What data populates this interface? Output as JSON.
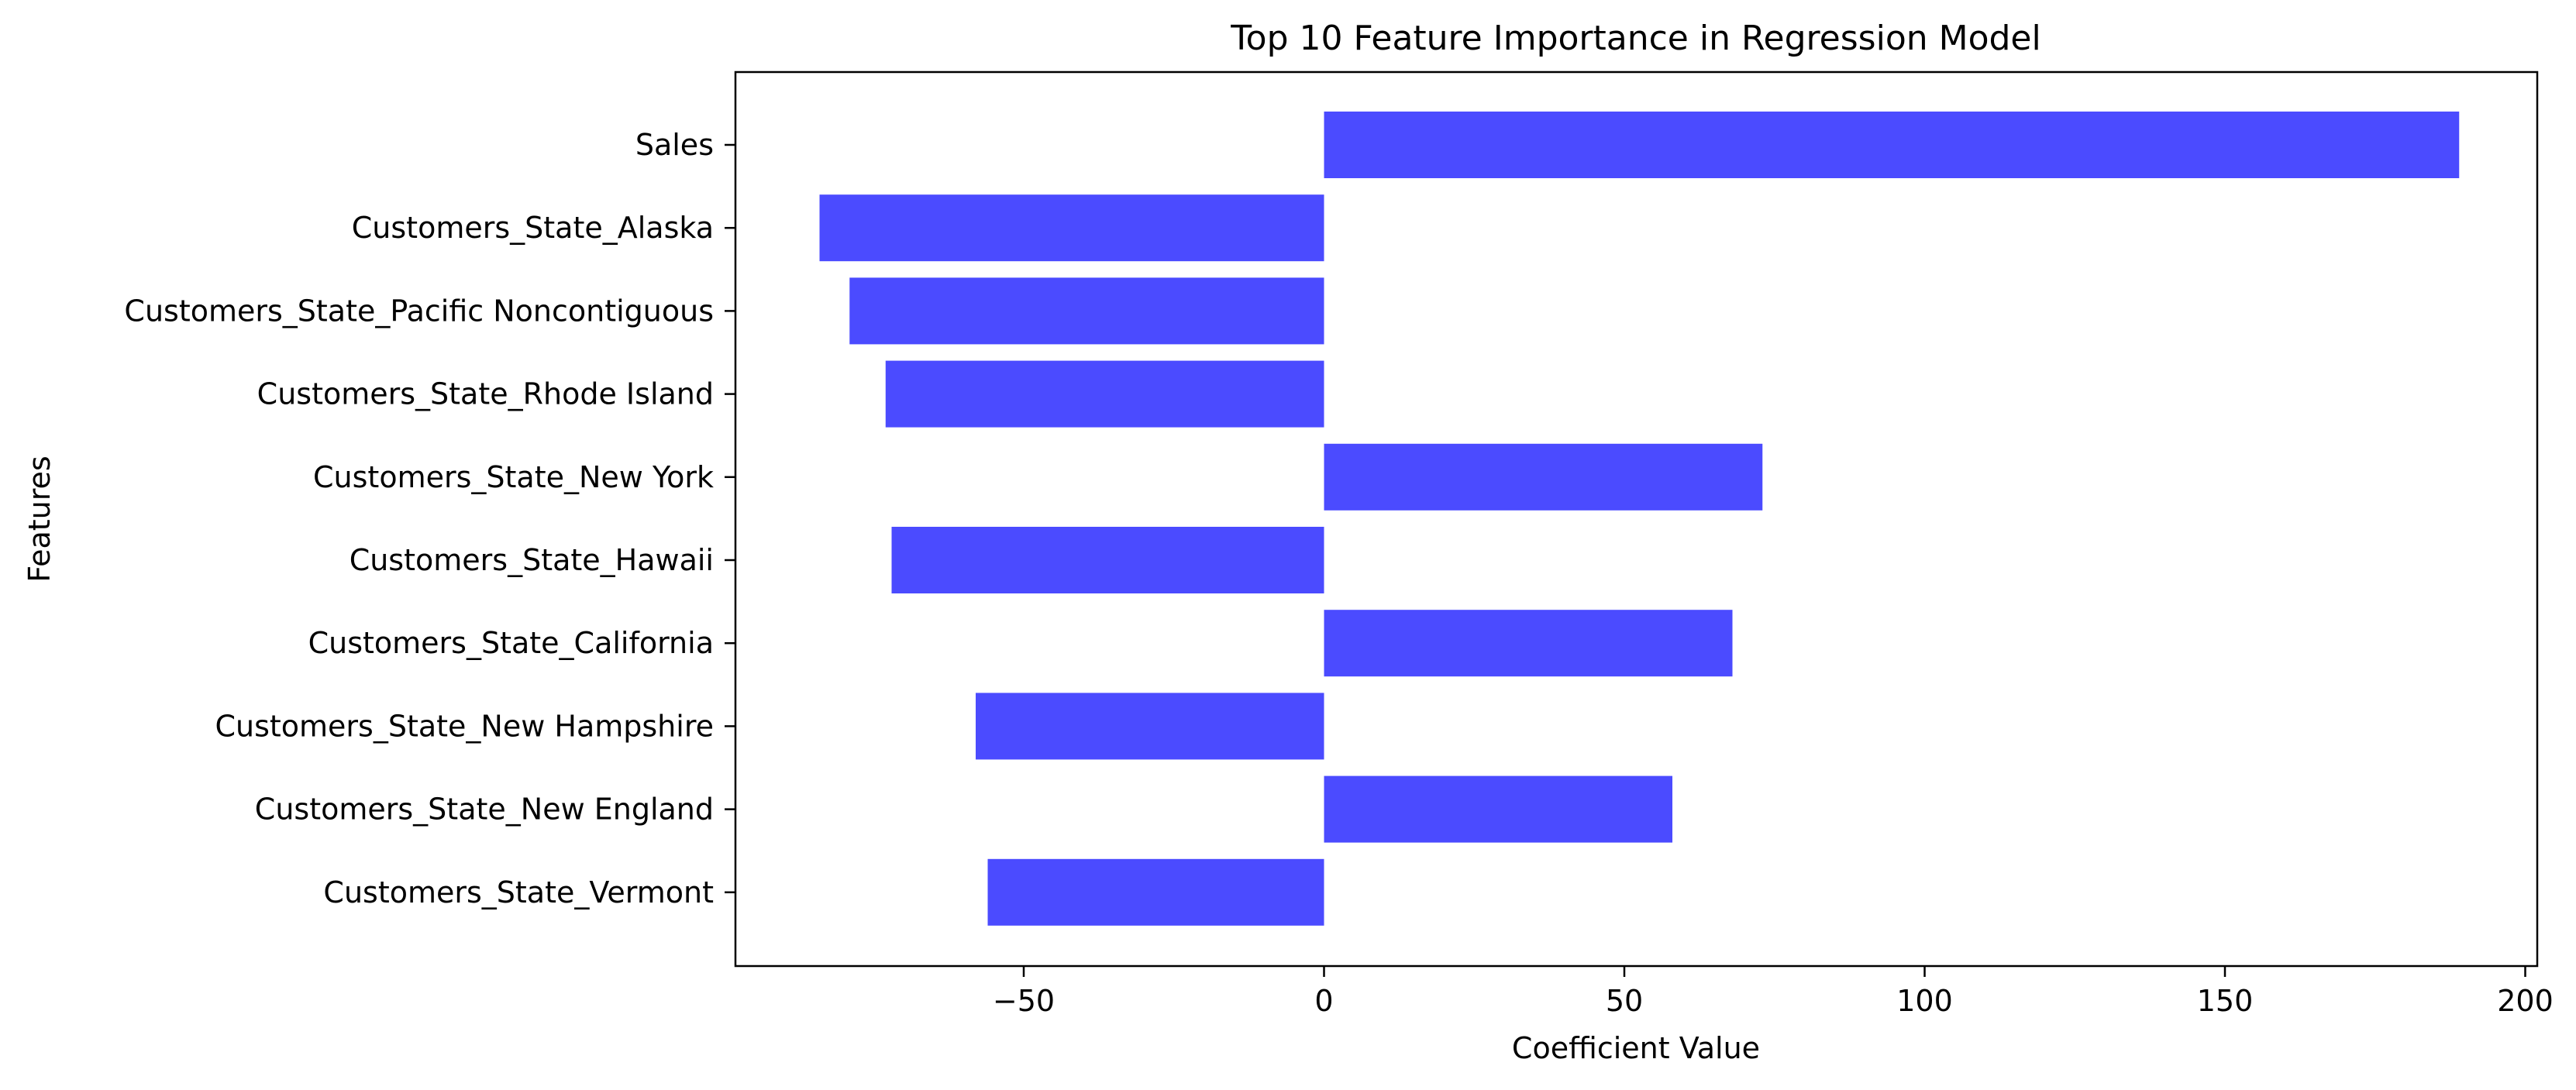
{
  "chart_data": {
    "type": "bar",
    "orientation": "horizontal",
    "title": "Top 10 Feature Importance in Regression Model",
    "xlabel": "Coefficient Value",
    "ylabel": "Features",
    "categories": [
      "Sales",
      "Customers_State_Alaska",
      "Customers_State_Pacific Noncontiguous",
      "Customers_State_Rhode Island",
      "Customers_State_New York",
      "Customers_State_Hawaii",
      "Customers_State_California",
      "Customers_State_New Hampshire",
      "Customers_State_New England",
      "Customers_State_Vermont"
    ],
    "values": [
      189,
      -84,
      -79,
      -73,
      73,
      -72,
      68,
      -58,
      58,
      -56
    ],
    "xlim": [
      -98,
      202
    ],
    "xticks": [
      -50,
      0,
      50,
      100,
      150,
      200
    ],
    "xtick_labels": [
      "−50",
      "0",
      "50",
      "100",
      "150",
      "200"
    ],
    "bar_color": "#4b4bff",
    "grid": false,
    "legend": "none"
  }
}
